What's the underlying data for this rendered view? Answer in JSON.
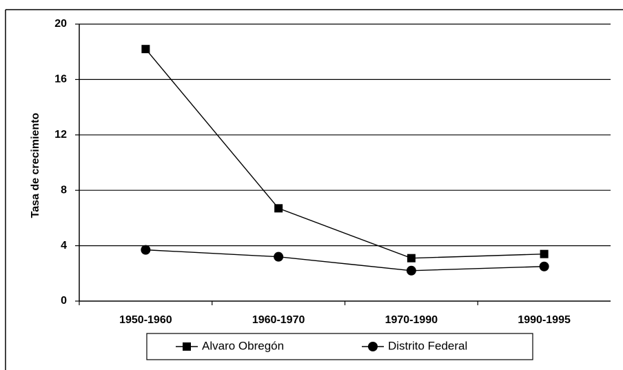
{
  "chart_data": {
    "type": "line",
    "y_label": "Tasa de crecimiento",
    "categories": [
      "1950-1960",
      "1960-1970",
      "1970-1990",
      "1990-1995"
    ],
    "series": [
      {
        "name": "Alvaro Obregón",
        "color": "#000000",
        "marker": "square",
        "values": [
          18.2,
          6.7,
          3.1,
          3.4
        ]
      },
      {
        "name": "Distrito Federal",
        "color": "#000000",
        "marker": "circle",
        "values": [
          3.7,
          3.2,
          2.2,
          2.5
        ]
      }
    ],
    "ylim": [
      0,
      20
    ],
    "yticks": [
      0,
      4,
      8,
      12,
      16,
      20
    ],
    "grid": true,
    "legend": "bottom"
  }
}
